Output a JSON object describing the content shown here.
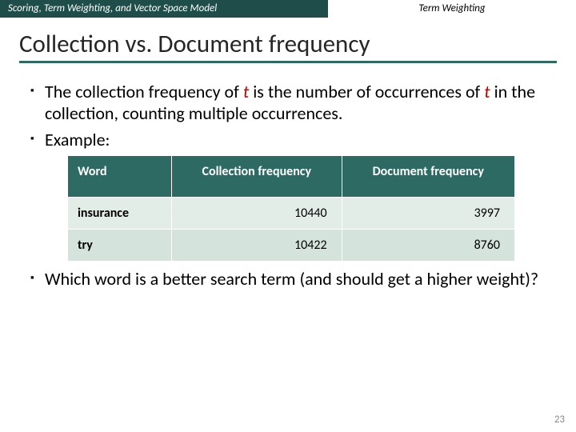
{
  "header": {
    "left": "Scoring, Term Weighting, and Vector Space Model",
    "right": "Term Weighting"
  },
  "title": "Collection vs. Document frequency",
  "bullets": {
    "b1_pre": "The collection frequency of ",
    "b1_t1": "t",
    "b1_mid": " is the number of occurrences of ",
    "b1_t2": "t",
    "b1_post": " in the collection, counting multiple occurrences.",
    "b2": "Example:",
    "b3": "Which word is a better search term (and should get a higher weight)?"
  },
  "table": {
    "columns": [
      "Word",
      "Collection frequency",
      "Document frequency"
    ],
    "rows": [
      {
        "word": "insurance",
        "cf": "10440",
        "df": "3997"
      },
      {
        "word": "try",
        "cf": "10422",
        "df": "8760"
      }
    ],
    "header_bg": "#2d6a63",
    "row_bg_odd": "#e2ede8",
    "row_bg_even": "#d4e3dc"
  },
  "page_number": "23",
  "colors": {
    "topbar_bg": "#1f4e4a",
    "title_underline": "#2d6a63",
    "term_color": "#c00000"
  }
}
